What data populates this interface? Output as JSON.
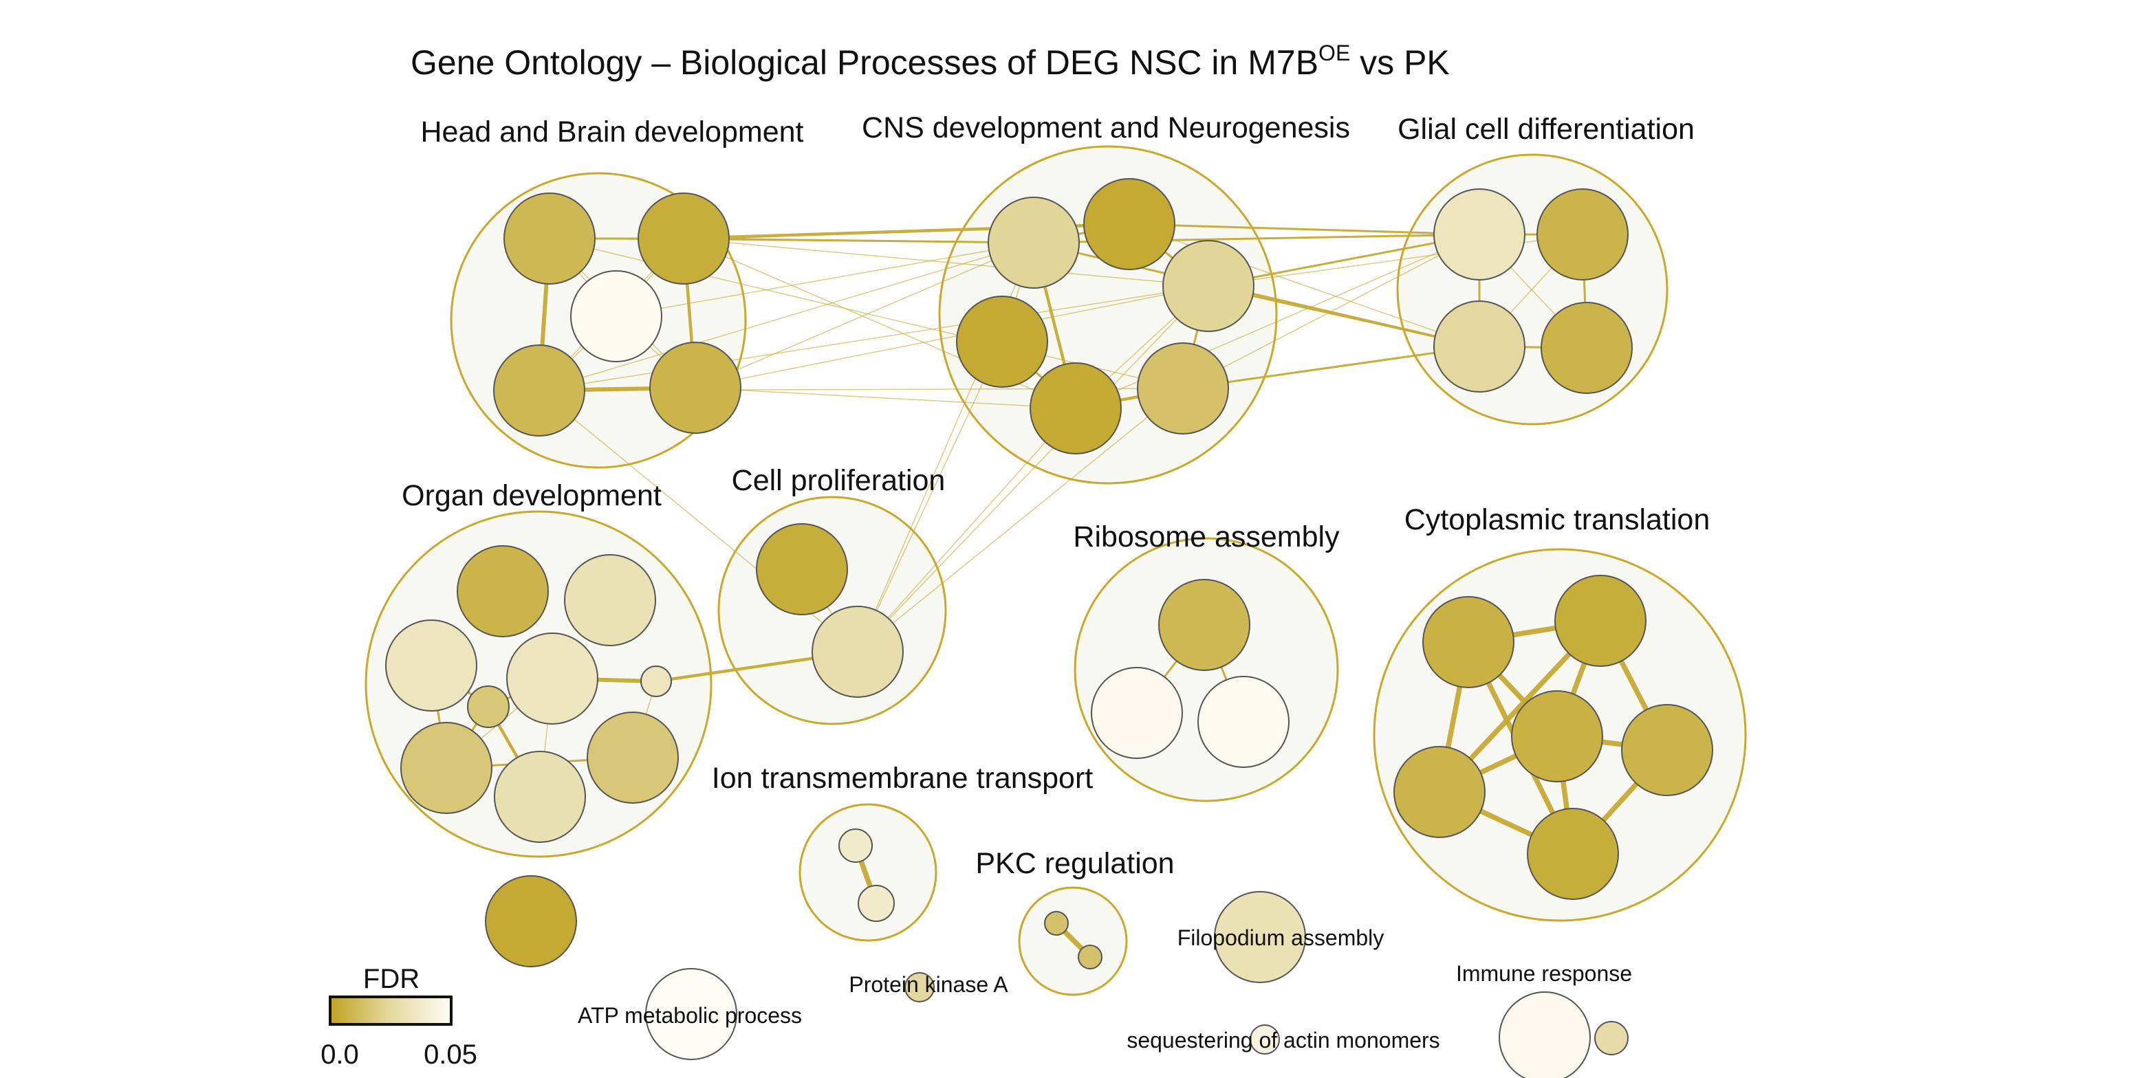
{
  "title": {
    "main": "Gene Ontology – Biological Processes of DEG NSC in M7B",
    "superscript": "OE",
    "suffix": " vs PK"
  },
  "colors": {
    "cluster_fill": "#f8f8f3",
    "cluster_stroke": "#c9a92b",
    "edge": "#c6aa33",
    "node_stroke": "#555555",
    "fdr_low": "#bfa321",
    "fdr_high": "#fdfcf5"
  },
  "legend": {
    "title": "FDR",
    "min_label": "0.0",
    "max_label": "0.05",
    "min": 0.0,
    "max": 0.05
  },
  "clusters": [
    {
      "id": "head",
      "label": "Head and Brain development"
    },
    {
      "id": "cns",
      "label": "CNS development and Neurogenesis"
    },
    {
      "id": "glial",
      "label": "Glial cell differentiation"
    },
    {
      "id": "organ",
      "label": "Organ development"
    },
    {
      "id": "prolif",
      "label": "Cell proliferation"
    },
    {
      "id": "ribo",
      "label": "Ribosome assembly"
    },
    {
      "id": "cyto",
      "label": "Cytoplasmic translation"
    },
    {
      "id": "ion",
      "label": "Ion transmembrane transport"
    },
    {
      "id": "pkc",
      "label": "PKC regulation"
    }
  ],
  "node_labels": [
    {
      "id": "filo",
      "label": "Filopodium assembly"
    },
    {
      "id": "immune",
      "label": "Immune response"
    },
    {
      "id": "pka",
      "label": "Protein kinase A"
    },
    {
      "id": "atp",
      "label": "ATP metabolic process"
    },
    {
      "id": "seq",
      "label": "sequestering of actin monomers"
    }
  ],
  "nodes": [
    {
      "id": "h1",
      "cluster": "head",
      "fdr": 0.012
    },
    {
      "id": "h2",
      "cluster": "head",
      "fdr": 0.006
    },
    {
      "id": "h3",
      "cluster": "head",
      "fdr": 0.049
    },
    {
      "id": "h4",
      "cluster": "head",
      "fdr": 0.012
    },
    {
      "id": "h5",
      "cluster": "head",
      "fdr": 0.01
    },
    {
      "id": "c1",
      "cluster": "cns",
      "fdr": 0.028
    },
    {
      "id": "c2",
      "cluster": "cns",
      "fdr": 0.004
    },
    {
      "id": "c3",
      "cluster": "cns",
      "fdr": 0.028
    },
    {
      "id": "c4",
      "cluster": "cns",
      "fdr": 0.004
    },
    {
      "id": "c5",
      "cluster": "cns",
      "fdr": 0.004
    },
    {
      "id": "c6",
      "cluster": "cns",
      "fdr": 0.017
    },
    {
      "id": "g1",
      "cluster": "glial",
      "fdr": 0.037
    },
    {
      "id": "g2",
      "cluster": "glial",
      "fdr": 0.01
    },
    {
      "id": "g3",
      "cluster": "glial",
      "fdr": 0.03
    },
    {
      "id": "g4",
      "cluster": "glial",
      "fdr": 0.01
    },
    {
      "id": "o1",
      "cluster": "organ",
      "fdr": 0.01
    },
    {
      "id": "o2",
      "cluster": "organ",
      "fdr": 0.035
    },
    {
      "id": "o3",
      "cluster": "organ",
      "fdr": 0.037
    },
    {
      "id": "o4",
      "cluster": "organ",
      "fdr": 0.037
    },
    {
      "id": "o5",
      "cluster": "organ",
      "fdr": 0.02
    },
    {
      "id": "o6",
      "cluster": "organ",
      "fdr": 0.02
    },
    {
      "id": "o7",
      "cluster": "organ",
      "fdr": 0.037
    },
    {
      "id": "o8",
      "cluster": "organ",
      "fdr": 0.034
    },
    {
      "id": "o9",
      "cluster": "organ",
      "fdr": 0.02
    },
    {
      "id": "p1",
      "cluster": "prolif",
      "fdr": 0.006
    },
    {
      "id": "p2",
      "cluster": "prolif",
      "fdr": 0.033
    },
    {
      "id": "r1",
      "cluster": "ribo",
      "fdr": 0.012
    },
    {
      "id": "r2",
      "cluster": "ribo",
      "fdr": 0.048
    },
    {
      "id": "r3",
      "cluster": "ribo",
      "fdr": 0.049
    },
    {
      "id": "t1",
      "cluster": "cyto",
      "fdr": 0.008
    },
    {
      "id": "t2",
      "cluster": "cyto",
      "fdr": 0.006
    },
    {
      "id": "t3",
      "cluster": "cyto",
      "fdr": 0.008
    },
    {
      "id": "t4",
      "cluster": "cyto",
      "fdr": 0.01
    },
    {
      "id": "t5",
      "cluster": "cyto",
      "fdr": 0.01
    },
    {
      "id": "t6",
      "cluster": "cyto",
      "fdr": 0.006
    },
    {
      "id": "i1",
      "cluster": "ion",
      "fdr": 0.04
    },
    {
      "id": "i2",
      "cluster": "ion",
      "fdr": 0.04
    },
    {
      "id": "k1",
      "cluster": "pkc",
      "fdr": 0.017
    },
    {
      "id": "k2",
      "cluster": "pkc",
      "fdr": 0.017
    },
    {
      "id": "single",
      "cluster": "",
      "fdr": 0.004
    },
    {
      "id": "filo",
      "cluster": "",
      "fdr": 0.035
    },
    {
      "id": "pka",
      "cluster": "",
      "fdr": 0.03
    },
    {
      "id": "atp",
      "cluster": "",
      "fdr": 0.05
    },
    {
      "id": "seq",
      "cluster": "",
      "fdr": 0.045
    },
    {
      "id": "immune",
      "cluster": "",
      "fdr": 0.048
    },
    {
      "id": "immune2",
      "cluster": "",
      "fdr": 0.032
    }
  ],
  "edges": [
    {
      "a": "h1",
      "b": "h2",
      "w": 2
    },
    {
      "a": "h1",
      "b": "h4",
      "w": 4
    },
    {
      "a": "h2",
      "b": "h5",
      "w": 3
    },
    {
      "a": "h4",
      "b": "h5",
      "w": 4
    },
    {
      "a": "h1",
      "b": "h3",
      "w": 1
    },
    {
      "a": "h2",
      "b": "h3",
      "w": 1
    },
    {
      "a": "h3",
      "b": "h4",
      "w": 1
    },
    {
      "a": "h3",
      "b": "h5",
      "w": 1
    },
    {
      "a": "h1",
      "b": "h5",
      "w": 1
    },
    {
      "a": "h2",
      "b": "h4",
      "w": 1
    },
    {
      "a": "c1",
      "b": "c2",
      "w": 2
    },
    {
      "a": "c1",
      "b": "c5",
      "w": 3
    },
    {
      "a": "c2",
      "b": "c3",
      "w": 2
    },
    {
      "a": "c4",
      "b": "c5",
      "w": 2
    },
    {
      "a": "c5",
      "b": "c6",
      "w": 3
    },
    {
      "a": "c3",
      "b": "c6",
      "w": 2
    },
    {
      "a": "c1",
      "b": "c4",
      "w": 1
    },
    {
      "a": "c3",
      "b": "c5",
      "w": 1
    },
    {
      "a": "g1",
      "b": "g2",
      "w": 2
    },
    {
      "a": "g1",
      "b": "g3",
      "w": 2
    },
    {
      "a": "g2",
      "b": "g4",
      "w": 2
    },
    {
      "a": "g3",
      "b": "g4",
      "w": 2
    },
    {
      "a": "g1",
      "b": "g4",
      "w": 1
    },
    {
      "a": "g2",
      "b": "g3",
      "w": 1
    },
    {
      "a": "h2",
      "b": "c2",
      "w": 3
    },
    {
      "a": "h2",
      "b": "c1",
      "w": 2
    },
    {
      "a": "h1",
      "b": "c1",
      "w": 1
    },
    {
      "a": "h5",
      "b": "c1",
      "w": 1
    },
    {
      "a": "h4",
      "b": "c1",
      "w": 1
    },
    {
      "a": "h3",
      "b": "c1",
      "w": 1
    },
    {
      "a": "h2",
      "b": "c3",
      "w": 1
    },
    {
      "a": "h5",
      "b": "c3",
      "w": 1
    },
    {
      "a": "h4",
      "b": "c3",
      "w": 1
    },
    {
      "a": "h2",
      "b": "c5",
      "w": 1
    },
    {
      "a": "h1",
      "b": "c6",
      "w": 1
    },
    {
      "a": "h4",
      "b": "c6",
      "w": 1
    },
    {
      "a": "h5",
      "b": "c5",
      "w": 1
    },
    {
      "a": "h4",
      "b": "p2",
      "w": 1
    },
    {
      "a": "c2",
      "b": "g1",
      "w": 2
    },
    {
      "a": "c1",
      "b": "g1",
      "w": 2
    },
    {
      "a": "c1",
      "b": "g3",
      "w": 2
    },
    {
      "a": "c3",
      "b": "g1",
      "w": 2
    },
    {
      "a": "c3",
      "b": "g3",
      "w": 2
    },
    {
      "a": "c6",
      "b": "g3",
      "w": 2
    },
    {
      "a": "c5",
      "b": "g1",
      "w": 1
    },
    {
      "a": "c2",
      "b": "g3",
      "w": 1
    },
    {
      "a": "c3",
      "b": "g2",
      "w": 1
    },
    {
      "a": "c6",
      "b": "g1",
      "w": 1
    },
    {
      "a": "p2",
      "b": "c1",
      "w": 1
    },
    {
      "a": "p2",
      "b": "c3",
      "w": 1
    },
    {
      "a": "p2",
      "b": "c5",
      "w": 1
    },
    {
      "a": "p2",
      "b": "c6",
      "w": 1
    },
    {
      "a": "p2",
      "b": "c4",
      "w": 1
    },
    {
      "a": "p1",
      "b": "p2",
      "w": 1
    },
    {
      "a": "o4",
      "b": "o8",
      "w": 1
    },
    {
      "a": "o4",
      "b": "o7",
      "w": 4
    },
    {
      "a": "o5",
      "b": "o8",
      "w": 3
    },
    {
      "a": "o5",
      "b": "o3",
      "w": 2
    },
    {
      "a": "o5",
      "b": "o6",
      "w": 2
    },
    {
      "a": "o5",
      "b": "o4",
      "w": 2
    },
    {
      "a": "o6",
      "b": "o3",
      "w": 2
    },
    {
      "a": "o6",
      "b": "o9",
      "w": 2
    },
    {
      "a": "o6",
      "b": "o4",
      "w": 1
    },
    {
      "a": "o3",
      "b": "o5",
      "w": 2
    },
    {
      "a": "o7",
      "b": "p2",
      "w": 3
    },
    {
      "a": "o7",
      "b": "o9",
      "w": 1
    },
    {
      "a": "r1",
      "b": "r2",
      "w": 2
    },
    {
      "a": "r1",
      "b": "r3",
      "w": 2
    },
    {
      "a": "t1",
      "b": "t2",
      "w": 5
    },
    {
      "a": "t1",
      "b": "t4",
      "w": 5
    },
    {
      "a": "t1",
      "b": "t3",
      "w": 5
    },
    {
      "a": "t1",
      "b": "t6",
      "w": 5
    },
    {
      "a": "t2",
      "b": "t3",
      "w": 5
    },
    {
      "a": "t2",
      "b": "t4",
      "w": 5
    },
    {
      "a": "t2",
      "b": "t5",
      "w": 5
    },
    {
      "a": "t3",
      "b": "t4",
      "w": 5
    },
    {
      "a": "t3",
      "b": "t5",
      "w": 5
    },
    {
      "a": "t3",
      "b": "t6",
      "w": 5
    },
    {
      "a": "t4",
      "b": "t6",
      "w": 5
    },
    {
      "a": "t5",
      "b": "t6",
      "w": 5
    },
    {
      "a": "i1",
      "b": "i2",
      "w": 5
    },
    {
      "a": "k1",
      "b": "k2",
      "w": 5
    }
  ]
}
